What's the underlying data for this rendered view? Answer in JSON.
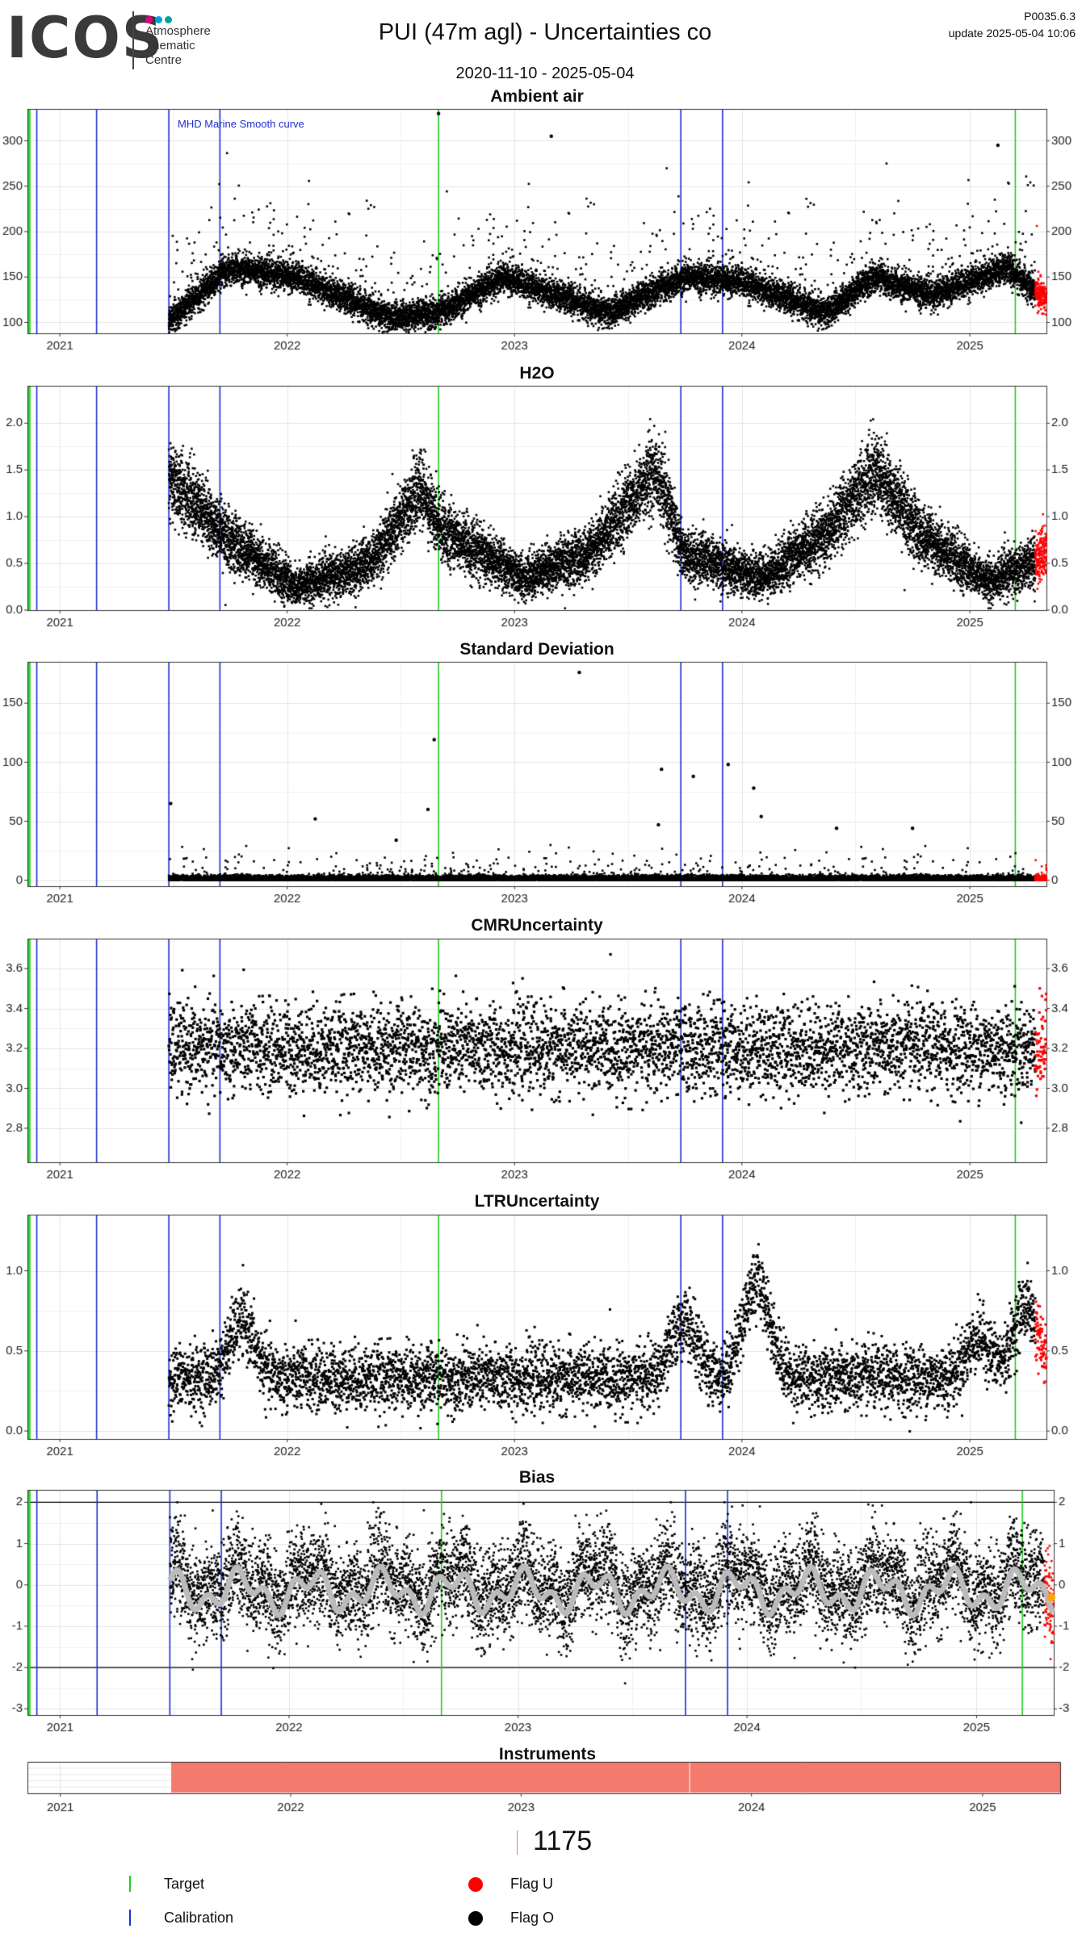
{
  "header": {
    "logo_text": "ICOS",
    "logo_subtitle_1": "Atmosphere",
    "logo_subtitle_2": "Thematic",
    "logo_subtitle_3": "Centre",
    "title": "PUI  (47m agl) - Uncertainties co",
    "date_range": "2020-11-10 - 2025-05-04",
    "version": "P0035.6.3",
    "update": "update  2025-05-04 10:06",
    "logo_dot_colors": [
      "#e6007e",
      "#009fe3",
      "#00a19a"
    ]
  },
  "colors": {
    "target": "#22cc22",
    "calibration": "#1f2fd0",
    "flag_u": "#ff0000",
    "flag_o": "#000000",
    "smooth": "#bbbbbb",
    "bias_end": "#ffa500",
    "instrument_bar": "#f47a6e"
  },
  "x_axis": {
    "years": [
      "2021",
      "2022",
      "2023",
      "2024",
      "2025"
    ],
    "start": "2020-11-10",
    "end": "2025-05-04"
  },
  "events": {
    "target_dates": [
      "2020-11-12",
      "2022-09-01",
      "2025-03-15"
    ],
    "calibration_dates": [
      "2020-11-25",
      "2021-03-01",
      "2021-06-25",
      "2021-09-15",
      "2023-09-25",
      "2023-12-01"
    ]
  },
  "chart_data": [
    {
      "type": "scatter",
      "title": "Ambient air",
      "annotation": "MHD Marine Smooth curve",
      "ylim": [
        88,
        335
      ],
      "yticks": [
        100,
        150,
        200,
        250,
        300
      ],
      "start": "2021-06-25",
      "seasonal": [
        {
          "date": "2021-07-01",
          "value": 105
        },
        {
          "date": "2021-10-01",
          "value": 160
        },
        {
          "date": "2022-01-15",
          "value": 150
        },
        {
          "date": "2022-06-15",
          "value": 105
        },
        {
          "date": "2022-09-01",
          "value": 110
        },
        {
          "date": "2022-12-15",
          "value": 150
        },
        {
          "date": "2023-06-01",
          "value": 110
        },
        {
          "date": "2023-10-01",
          "value": 150
        },
        {
          "date": "2024-01-01",
          "value": 145
        },
        {
          "date": "2024-05-15",
          "value": 110
        },
        {
          "date": "2024-08-01",
          "value": 150
        },
        {
          "date": "2024-11-01",
          "value": 130
        },
        {
          "date": "2025-03-01",
          "value": 160
        },
        {
          "date": "2025-05-04",
          "value": 125
        }
      ],
      "outliers": [
        {
          "date": "2022-09-01",
          "value": 330
        },
        {
          "date": "2023-03-01",
          "value": 305
        },
        {
          "date": "2025-02-15",
          "value": 295
        }
      ]
    },
    {
      "type": "scatter",
      "title": "H2O",
      "ylim": [
        0,
        2.4
      ],
      "yticks": [
        0.0,
        0.5,
        1.0,
        1.5,
        2.0
      ],
      "start": "2021-06-25",
      "seasonal": [
        {
          "date": "2021-06-25",
          "value": 1.4
        },
        {
          "date": "2021-08-01",
          "value": 1.2
        },
        {
          "date": "2021-09-20",
          "value": 0.8
        },
        {
          "date": "2022-01-15",
          "value": 0.25
        },
        {
          "date": "2022-05-15",
          "value": 0.5
        },
        {
          "date": "2022-08-01",
          "value": 1.3
        },
        {
          "date": "2022-09-15",
          "value": 0.8
        },
        {
          "date": "2023-01-15",
          "value": 0.35
        },
        {
          "date": "2023-05-01",
          "value": 0.6
        },
        {
          "date": "2023-08-15",
          "value": 1.5
        },
        {
          "date": "2023-10-01",
          "value": 0.6
        },
        {
          "date": "2024-02-01",
          "value": 0.35
        },
        {
          "date": "2024-05-15",
          "value": 0.8
        },
        {
          "date": "2024-08-01",
          "value": 1.5
        },
        {
          "date": "2024-10-15",
          "value": 0.8
        },
        {
          "date": "2025-02-01",
          "value": 0.3
        },
        {
          "date": "2025-05-04",
          "value": 0.6
        }
      ]
    },
    {
      "type": "scatter",
      "title": "Standard Deviation",
      "ylim": [
        -5,
        185
      ],
      "yticks": [
        0,
        50,
        100,
        150
      ],
      "start": "2021-06-25",
      "outliers": [
        {
          "date": "2021-06-28",
          "value": 65
        },
        {
          "date": "2022-08-15",
          "value": 60
        },
        {
          "date": "2022-08-25",
          "value": 119
        },
        {
          "date": "2022-02-15",
          "value": 52
        },
        {
          "date": "2023-04-15",
          "value": 176
        },
        {
          "date": "2023-08-25",
          "value": 94
        },
        {
          "date": "2023-10-15",
          "value": 88
        },
        {
          "date": "2023-12-10",
          "value": 98
        },
        {
          "date": "2024-01-20",
          "value": 78
        },
        {
          "date": "2024-02-01",
          "value": 54
        },
        {
          "date": "2024-06-01",
          "value": 44
        },
        {
          "date": "2024-10-01",
          "value": 44
        },
        {
          "date": "2023-08-20",
          "value": 47
        },
        {
          "date": "2022-06-25",
          "value": 34
        }
      ]
    },
    {
      "type": "scatter",
      "title": "CMRUncertainty",
      "ylim": [
        2.63,
        3.75
      ],
      "yticks": [
        2.8,
        3.0,
        3.2,
        3.4,
        3.6
      ],
      "start": "2021-06-25"
    },
    {
      "type": "scatter",
      "title": "LTRUncertainty",
      "ylim": [
        -0.05,
        1.35
      ],
      "yticks": [
        0.0,
        0.5,
        1.0
      ],
      "start": "2021-06-25"
    },
    {
      "type": "scatter",
      "title": "Bias",
      "ylim": [
        -3.15,
        2.3
      ],
      "yticks": [
        -3,
        -2,
        -1,
        0,
        1,
        2
      ],
      "reference_lines": [
        2,
        -2
      ],
      "start": "2021-06-25"
    },
    {
      "type": "bar",
      "title": "Instruments",
      "segments": [
        {
          "start": "2021-06-25",
          "end": "2023-09-25"
        },
        {
          "start": "2023-09-25",
          "end": "2025-05-04"
        }
      ]
    }
  ],
  "instrument_id": "1175",
  "legend": {
    "target": "Target",
    "calibration": "Calibration",
    "flag_u": "Flag U",
    "flag_o": "Flag O"
  }
}
